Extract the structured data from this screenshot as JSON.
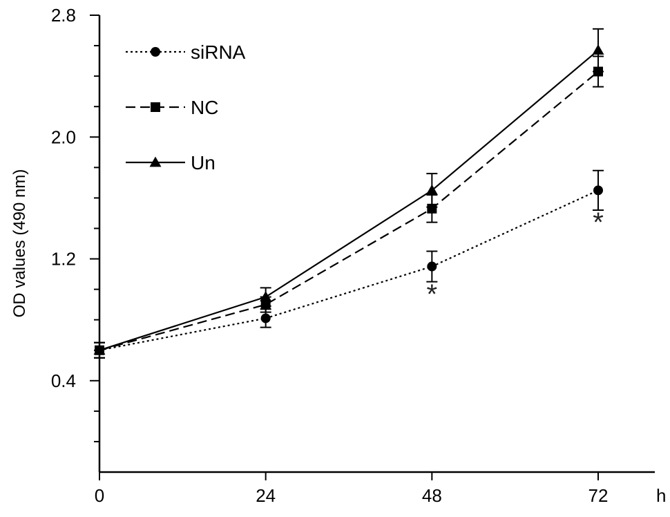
{
  "chart_data": {
    "type": "line",
    "x": [
      0,
      24,
      48,
      72
    ],
    "xlabel": "h",
    "ylabel": "OD values (490 nm)",
    "xlim": [
      0,
      80
    ],
    "ylim": [
      -0.2,
      2.8
    ],
    "yticks": [
      0.4,
      1.2,
      2.0,
      2.8
    ],
    "xticks": [
      0,
      24,
      48,
      72
    ],
    "grid": false,
    "legend": "top-left",
    "series": [
      {
        "name": "siRNA",
        "marker": "circle",
        "dash": "dotted",
        "values": [
          0.6,
          0.81,
          1.15,
          1.65
        ],
        "errors": [
          0.05,
          0.06,
          0.1,
          0.13
        ]
      },
      {
        "name": "NC",
        "marker": "square",
        "dash": "dashed",
        "values": [
          0.6,
          0.9,
          1.53,
          2.43
        ],
        "errors": [
          0.05,
          0.05,
          0.09,
          0.1
        ]
      },
      {
        "name": "Un",
        "marker": "triangle",
        "dash": "solid",
        "values": [
          0.6,
          0.95,
          1.65,
          2.57
        ],
        "errors": [
          0.05,
          0.06,
          0.11,
          0.14
        ]
      }
    ],
    "annotations": [
      {
        "text": "*",
        "x": 48,
        "y": 0.99
      },
      {
        "text": "*",
        "x": 72,
        "y": 1.46
      }
    ]
  }
}
